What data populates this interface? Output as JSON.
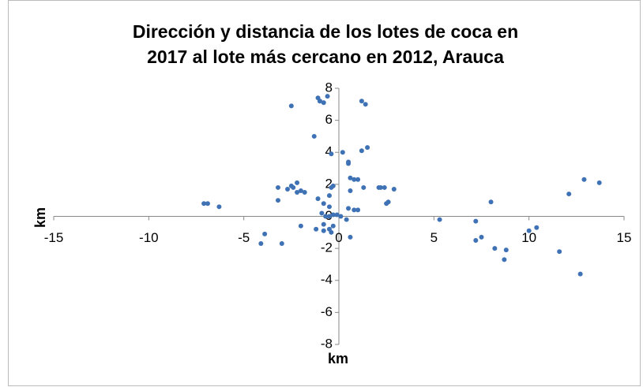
{
  "chart_data": {
    "type": "scatter",
    "title": [
      "Dirección y distancia de los lotes de coca en",
      "2017 al lote más cercano en 2012, Arauca"
    ],
    "xlabel": "km",
    "ylabel": "km",
    "color": "#3f72b5",
    "xlim": [
      -15,
      15
    ],
    "xticks": [
      -15,
      -10,
      -5,
      0,
      5,
      10,
      15
    ],
    "ylim": [
      -8,
      8
    ],
    "yticks": [
      -8,
      -6,
      -4,
      -2,
      0,
      2,
      4,
      6,
      8
    ],
    "grid": false,
    "series": [
      {
        "name": null,
        "color": "#3f72b5",
        "x": [
          -7.1,
          -6.9,
          -6.3,
          -3.9,
          -4.1,
          -3.0,
          -3.2,
          -3.2,
          -2.5,
          -2.7,
          -2.5,
          -2.4,
          -2.2,
          -2.0,
          -1.8,
          -2.2,
          -2.0,
          -1.3,
          -1.1,
          -1.0,
          -0.8,
          -1.0,
          -0.6,
          -0.4,
          0.2,
          0.5,
          0.5,
          1.2,
          1.4,
          1.2,
          1.5,
          -1.1,
          -0.5,
          -0.4,
          -0.3,
          -0.8,
          -0.5,
          0.6,
          0.8,
          0.6,
          1.0,
          1.3,
          0.5,
          0.8,
          1.0,
          -0.9,
          -0.7,
          -0.5,
          -0.3,
          -0.1,
          -0.8,
          -0.5,
          -0.3,
          -0.8,
          -0.4,
          -1.2,
          0.6,
          0.1,
          0.4,
          2.1,
          2.2,
          2.4,
          2.6,
          2.5,
          2.9,
          5.3,
          7.2,
          7.2,
          7.5,
          8.0,
          8.2,
          8.7,
          8.8,
          10.0,
          10.4,
          11.6,
          12.1,
          12.9,
          13.7,
          12.7
        ],
        "y": [
          0.8,
          0.8,
          0.6,
          -1.1,
          -1.7,
          -1.7,
          1.8,
          1.0,
          6.9,
          1.7,
          1.9,
          1.8,
          2.1,
          1.6,
          1.5,
          1.5,
          -0.6,
          5.0,
          7.4,
          7.2,
          7.1,
          7.2,
          7.5,
          3.9,
          4.0,
          3.4,
          3.3,
          7.2,
          7.0,
          4.1,
          4.3,
          1.1,
          1.3,
          1.8,
          1.9,
          0.8,
          0.6,
          2.4,
          2.3,
          1.6,
          2.3,
          1.8,
          0.5,
          0.4,
          0.4,
          0.2,
          0.0,
          0.0,
          0.1,
          0.1,
          -0.5,
          -0.8,
          -0.6,
          -0.9,
          -1.0,
          -0.8,
          -1.3,
          0.0,
          -0.2,
          1.8,
          1.8,
          1.8,
          0.9,
          0.8,
          1.7,
          -0.2,
          -0.3,
          -1.5,
          -1.3,
          0.9,
          -2.0,
          -2.7,
          -2.1,
          -0.9,
          -0.7,
          -2.2,
          1.4,
          2.3,
          2.1,
          -3.6
        ]
      }
    ]
  }
}
